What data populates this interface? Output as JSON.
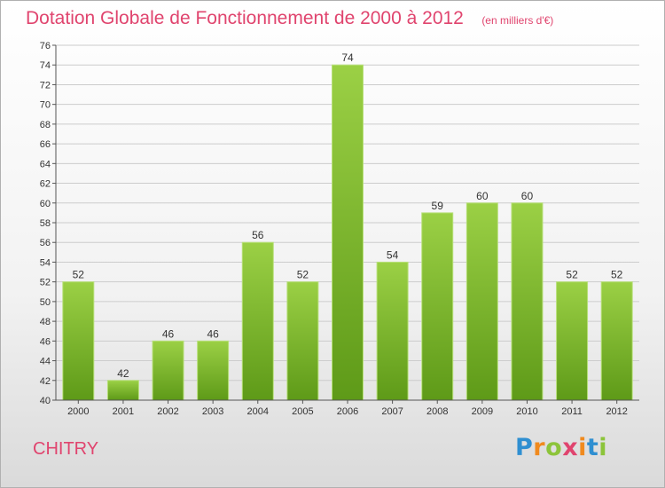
{
  "title": "Dotation Globale de Fonctionnement de 2000 à 2012",
  "subtitle": "(en milliers d'€)",
  "city": "CHITRY",
  "logo": {
    "letters": [
      "P",
      "r",
      "o",
      "x",
      "i",
      "t",
      "i"
    ],
    "colors": [
      "#2f8fd1",
      "#f08a1e",
      "#8cc43a",
      "#e0446e",
      "#f08a1e",
      "#2f8fd1",
      "#8cc43a"
    ]
  },
  "colors": {
    "bar_top": "#9bd045",
    "bar_bottom": "#5e9a18",
    "text_accent": "#e0446e",
    "grid": "#cccccc"
  },
  "chart_data": {
    "type": "bar",
    "categories": [
      "2000",
      "2001",
      "2002",
      "2003",
      "2004",
      "2005",
      "2006",
      "2007",
      "2008",
      "2009",
      "2010",
      "2011",
      "2012"
    ],
    "values": [
      52,
      42,
      46,
      46,
      56,
      52,
      74,
      54,
      59,
      60,
      60,
      52,
      52
    ],
    "ylim": [
      40,
      76
    ],
    "yticks": [
      40,
      42,
      44,
      46,
      48,
      50,
      52,
      54,
      56,
      58,
      60,
      62,
      64,
      66,
      68,
      70,
      72,
      74,
      76
    ],
    "grid": true,
    "legend": "none"
  }
}
